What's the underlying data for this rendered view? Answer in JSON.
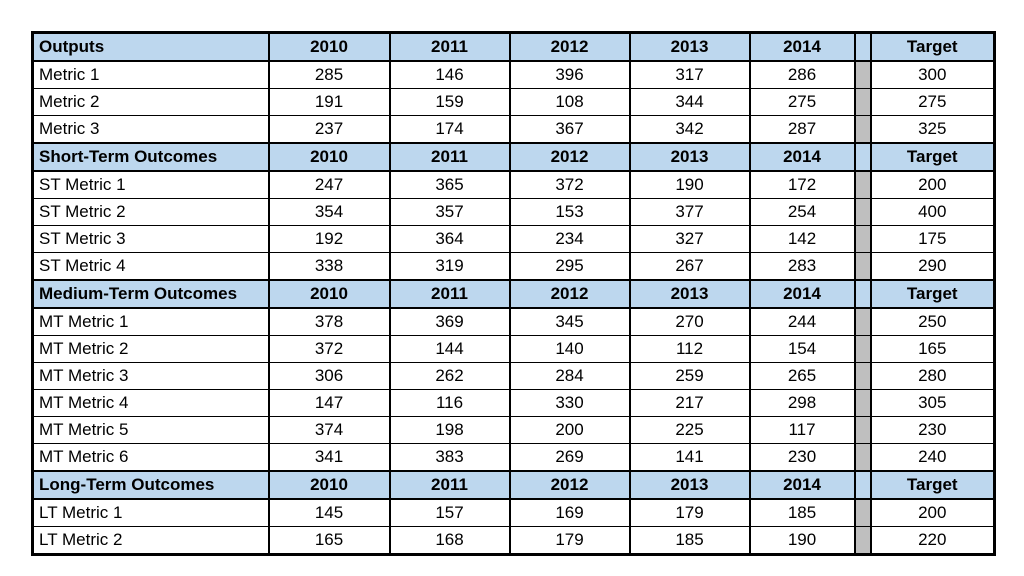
{
  "colors": {
    "section_header_bg": "#BDD7EE",
    "separator_bg": "#BFBFBF",
    "border": "#000000",
    "row_bg": "#FFFFFF",
    "text": "#000000"
  },
  "chart_data": {
    "type": "table",
    "years": [
      "2010",
      "2011",
      "2012",
      "2013",
      "2014"
    ],
    "target_label": "Target",
    "sections": [
      {
        "title": "Outputs",
        "rows": [
          {
            "label": "Metric 1",
            "values": [
              285,
              146,
              396,
              317,
              286
            ],
            "target": 300
          },
          {
            "label": "Metric 2",
            "values": [
              191,
              159,
              108,
              344,
              275
            ],
            "target": 275
          },
          {
            "label": "Metric 3",
            "values": [
              237,
              174,
              367,
              342,
              287
            ],
            "target": 325
          }
        ]
      },
      {
        "title": "Short-Term Outcomes",
        "rows": [
          {
            "label": "ST Metric 1",
            "values": [
              247,
              365,
              372,
              190,
              172
            ],
            "target": 200
          },
          {
            "label": "ST Metric 2",
            "values": [
              354,
              357,
              153,
              377,
              254
            ],
            "target": 400
          },
          {
            "label": "ST Metric 3",
            "values": [
              192,
              364,
              234,
              327,
              142
            ],
            "target": 175
          },
          {
            "label": "ST Metric 4",
            "values": [
              338,
              319,
              295,
              267,
              283
            ],
            "target": 290
          }
        ]
      },
      {
        "title": "Medium-Term Outcomes",
        "rows": [
          {
            "label": "MT Metric 1",
            "values": [
              378,
              369,
              345,
              270,
              244
            ],
            "target": 250
          },
          {
            "label": "MT Metric 2",
            "values": [
              372,
              144,
              140,
              112,
              154
            ],
            "target": 165
          },
          {
            "label": "MT Metric 3",
            "values": [
              306,
              262,
              284,
              259,
              265
            ],
            "target": 280
          },
          {
            "label": "MT Metric 4",
            "values": [
              147,
              116,
              330,
              217,
              298
            ],
            "target": 305
          },
          {
            "label": "MT Metric 5",
            "values": [
              374,
              198,
              200,
              225,
              117
            ],
            "target": 230
          },
          {
            "label": "MT Metric 6",
            "values": [
              341,
              383,
              269,
              141,
              230
            ],
            "target": 240
          }
        ]
      },
      {
        "title": "Long-Term Outcomes",
        "rows": [
          {
            "label": "LT Metric 1",
            "values": [
              145,
              157,
              169,
              179,
              185
            ],
            "target": 200
          },
          {
            "label": "LT Metric 2",
            "values": [
              165,
              168,
              179,
              185,
              190
            ],
            "target": 220
          }
        ]
      }
    ]
  }
}
